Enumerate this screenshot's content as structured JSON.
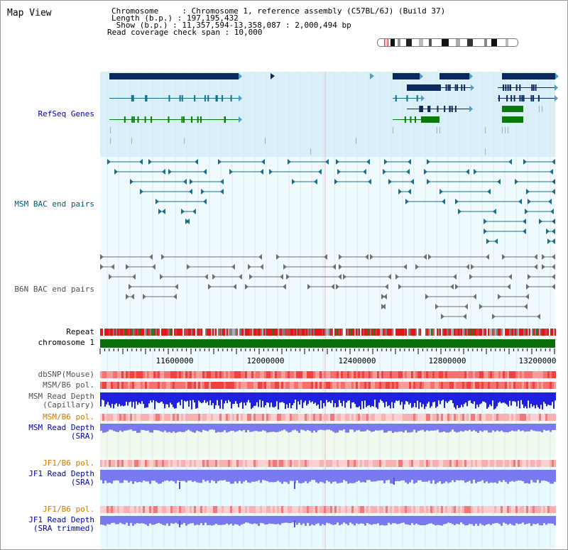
{
  "header": {
    "title": "Map View",
    "chromosome_line": "Chromosome     : Chromosome 1, reference assembly (C57BL/6J) (Build 37)",
    "length_line": "Length (b.p.) : 197,195,432",
    "show_line": " Show (b.p.) : 11,357,594-13,358,087 : 2,000,494 bp",
    "coverage_line": "Read coverage check span : 10,000"
  },
  "tracks": {
    "refseq": "RefSeq Genes",
    "msm_bac": "MSM BAC end pairs",
    "b6n_bac": "B6N BAC end pairs",
    "repeat": "Repeat",
    "chromosome": "chromosome 1",
    "dbsnp": "dbSNP(Mouse)",
    "msm_b6_pol": "MSM/B6 pol.",
    "msm_depth_cap_1": "MSM Read Depth",
    "msm_depth_cap_2": "(Capillary)",
    "msm_b6_pol2": "MSM/B6 pol.",
    "msm_depth_sra_1": "MSM Read Depth",
    "msm_depth_sra_2": "(SRA)",
    "jf1_b6_pol": "JF1/B6 pol.",
    "jf1_depth_sra_1": "JF1 Read Depth",
    "jf1_depth_sra_2": "(SRA)",
    "jf1_b6_pol2": "JF1/B6 pol.",
    "jf1_depth_trim_1": "JF1 Read Depth",
    "jf1_depth_trim_2": "(SRA trimmed)"
  },
  "axis": {
    "ticks": [
      "11600000",
      "12000000",
      "12400000",
      "12800000",
      "13200000"
    ]
  },
  "colors": {
    "gene_navy": "#0a2a5e",
    "gene_green": "#0a7a0a",
    "msm_teal": "#1a6e8a",
    "b6n_gray": "#707070",
    "chromosome_green": "#0a6e0a",
    "snp_red": "#e02020",
    "depth_blue": "#2020e0",
    "depth_light": "#7a7af0"
  }
}
